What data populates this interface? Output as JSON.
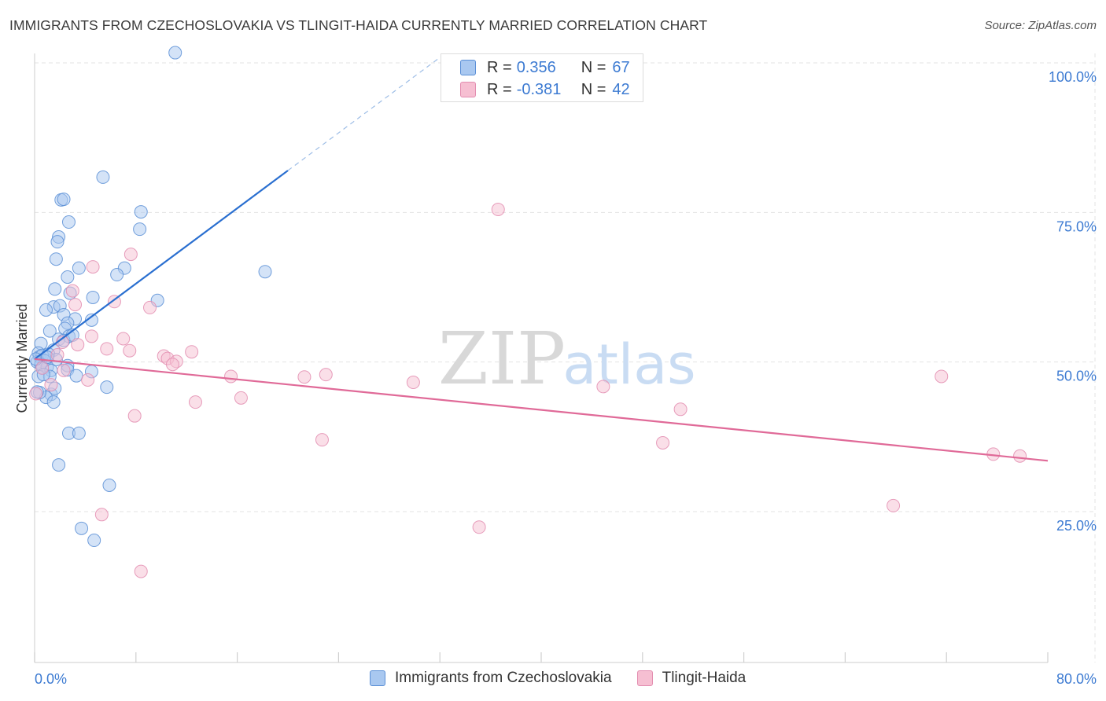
{
  "header": {
    "title": "IMMIGRANTS FROM CZECHOSLOVAKIA VS TLINGIT-HAIDA CURRENTLY MARRIED CORRELATION CHART",
    "source": "Source: ZipAtlas.com"
  },
  "watermark": {
    "zip": "ZIP",
    "atlas": "atlas"
  },
  "legend": {
    "series1": {
      "r_label": "R =",
      "r_value": "0.356",
      "n_label": "N =",
      "n_value": "67"
    },
    "series2": {
      "r_label": "R =",
      "r_value": "-0.381",
      "n_label": "N =",
      "n_value": "42"
    }
  },
  "chart_data": {
    "type": "scatter",
    "title": "IMMIGRANTS FROM CZECHOSLOVAKIA VS TLINGIT-HAIDA CURRENTLY MARRIED CORRELATION CHART",
    "xlabel": "",
    "ylabel": "Currently Married",
    "xlim": [
      0,
      80
    ],
    "ylim": [
      0,
      100
    ],
    "x_tick_labels": {
      "min": "0.0%",
      "max": "80.0%"
    },
    "y_ticks": [
      25,
      50,
      75,
      100
    ],
    "y_tick_labels": [
      "25.0%",
      "50.0%",
      "75.0%",
      "100.0%"
    ],
    "grid": true,
    "legend_position": "top-center",
    "colors": {
      "series1_fill": "#a9c8f0",
      "series1_stroke": "#5a8fd6",
      "series1_line": "#2a6fd0",
      "series2_fill": "#f6bfd2",
      "series2_stroke": "#e38db0",
      "series2_line": "#e06a98",
      "grid": "#e3e3e3",
      "axis_label": "#3d7bd2"
    },
    "series": [
      {
        "name": "Immigrants from Czechoslovakia",
        "trend": {
          "x0": 0,
          "y0": 50.5,
          "x1": 20,
          "y1": 82,
          "dash_to_x": 32.5
        },
        "points": [
          [
            11.1,
            101.7
          ],
          [
            5.4,
            80.9
          ],
          [
            2.1,
            77.1
          ],
          [
            2.3,
            77.2
          ],
          [
            8.4,
            75.1
          ],
          [
            2.7,
            73.4
          ],
          [
            8.3,
            72.2
          ],
          [
            1.9,
            70.9
          ],
          [
            1.8,
            70.1
          ],
          [
            1.7,
            67.2
          ],
          [
            7.1,
            65.7
          ],
          [
            3.5,
            65.7
          ],
          [
            6.5,
            64.6
          ],
          [
            2.6,
            64.2
          ],
          [
            18.2,
            65.1
          ],
          [
            1.6,
            62.2
          ],
          [
            2.8,
            61.5
          ],
          [
            4.6,
            60.8
          ],
          [
            9.7,
            60.3
          ],
          [
            1.5,
            59.2
          ],
          [
            0.9,
            58.7
          ],
          [
            2.0,
            59.4
          ],
          [
            2.3,
            57.9
          ],
          [
            3.2,
            57.2
          ],
          [
            4.5,
            57.0
          ],
          [
            2.6,
            56.5
          ],
          [
            2.4,
            55.6
          ],
          [
            1.2,
            55.2
          ],
          [
            2.7,
            54.3
          ],
          [
            1.9,
            53.8
          ],
          [
            2.3,
            53.6
          ],
          [
            0.5,
            53.1
          ],
          [
            1.5,
            52.0
          ],
          [
            0.3,
            51.5
          ],
          [
            0.4,
            50.9
          ],
          [
            0.6,
            51.1
          ],
          [
            1.1,
            51.3
          ],
          [
            1.7,
            50.4
          ],
          [
            0.8,
            50.2
          ],
          [
            0.2,
            50.0
          ],
          [
            0.5,
            49.6
          ],
          [
            1.0,
            49.2
          ],
          [
            2.6,
            49.4
          ],
          [
            0.6,
            49.0
          ],
          [
            1.3,
            48.6
          ],
          [
            2.6,
            48.7
          ],
          [
            4.5,
            48.4
          ],
          [
            0.3,
            47.6
          ],
          [
            1.2,
            47.6
          ],
          [
            3.3,
            47.7
          ],
          [
            5.7,
            45.8
          ],
          [
            1.3,
            44.6
          ],
          [
            0.9,
            44.1
          ],
          [
            1.5,
            43.3
          ],
          [
            0.4,
            44.9
          ],
          [
            1.6,
            45.6
          ],
          [
            2.7,
            38.1
          ],
          [
            3.5,
            38.1
          ],
          [
            1.9,
            32.8
          ],
          [
            5.9,
            29.4
          ],
          [
            3.7,
            22.2
          ],
          [
            4.7,
            20.2
          ],
          [
            0.1,
            50.5
          ],
          [
            1.0,
            50.8
          ],
          [
            0.7,
            47.9
          ],
          [
            0.2,
            45.0
          ],
          [
            3.0,
            54.5
          ]
        ]
      },
      {
        "name": "Tlingit-Haida",
        "trend": {
          "x0": 0,
          "y0": 50.5,
          "x1": 80,
          "y1": 33.5
        },
        "points": [
          [
            36.6,
            75.5
          ],
          [
            7.6,
            68.0
          ],
          [
            4.6,
            65.9
          ],
          [
            3.0,
            61.9
          ],
          [
            6.3,
            60.1
          ],
          [
            3.2,
            59.6
          ],
          [
            9.1,
            59.1
          ],
          [
            4.5,
            54.3
          ],
          [
            7.0,
            53.9
          ],
          [
            2.2,
            53.3
          ],
          [
            3.4,
            52.9
          ],
          [
            5.7,
            52.2
          ],
          [
            7.5,
            51.9
          ],
          [
            12.4,
            51.7
          ],
          [
            10.2,
            51.0
          ],
          [
            10.5,
            50.6
          ],
          [
            11.2,
            50.1
          ],
          [
            10.9,
            49.6
          ],
          [
            15.5,
            47.6
          ],
          [
            21.3,
            47.5
          ],
          [
            23.0,
            47.9
          ],
          [
            29.9,
            46.6
          ],
          [
            44.9,
            45.9
          ],
          [
            16.3,
            44.0
          ],
          [
            12.7,
            43.3
          ],
          [
            7.9,
            41.0
          ],
          [
            51.0,
            42.1
          ],
          [
            71.6,
            47.6
          ],
          [
            22.7,
            37.0
          ],
          [
            49.6,
            36.5
          ],
          [
            75.7,
            34.6
          ],
          [
            77.8,
            34.3
          ],
          [
            5.3,
            24.5
          ],
          [
            35.1,
            22.4
          ],
          [
            67.8,
            26.0
          ],
          [
            8.4,
            15.0
          ],
          [
            1.3,
            46.2
          ],
          [
            0.1,
            44.7
          ],
          [
            2.3,
            48.6
          ],
          [
            4.2,
            47.0
          ],
          [
            1.8,
            51.2
          ],
          [
            0.6,
            49.0
          ]
        ]
      }
    ]
  }
}
